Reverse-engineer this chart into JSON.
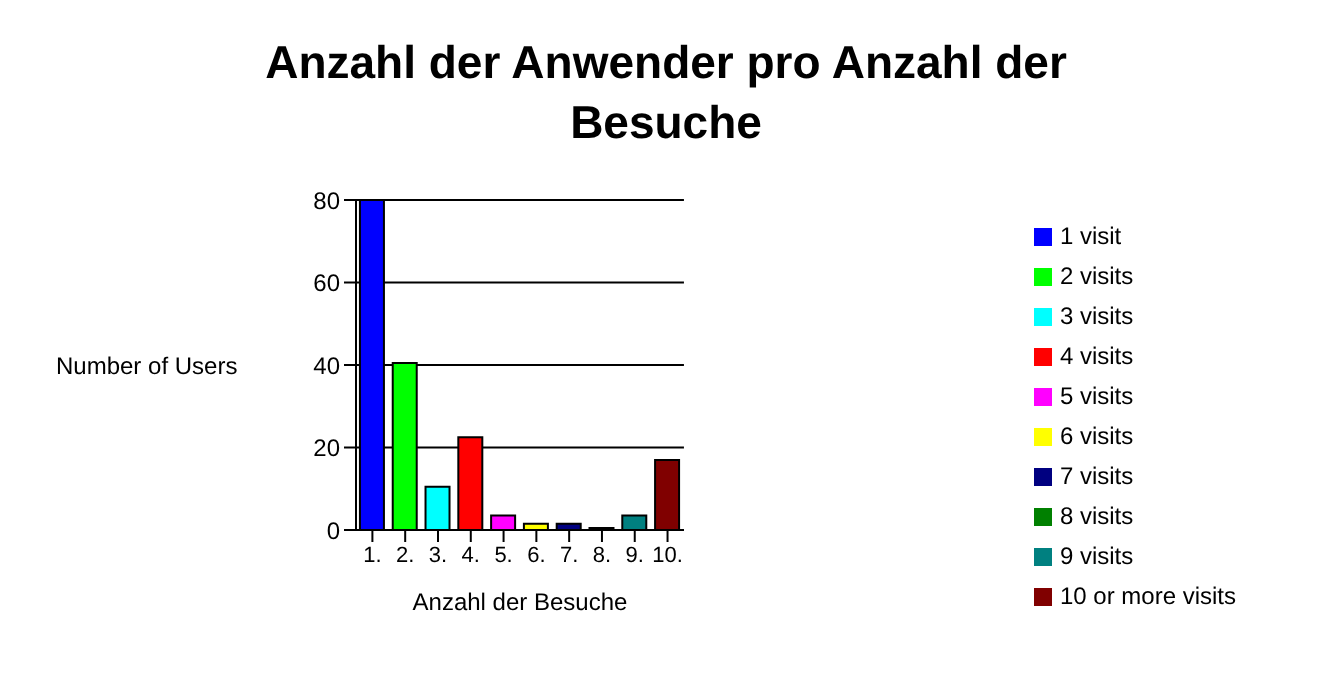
{
  "chart_data": {
    "type": "bar",
    "title": "Anzahl der Anwender pro Anzahl der Besuche",
    "xlabel": "Anzahl der Besuche",
    "ylabel": "Number of Users",
    "categories": [
      "1.",
      "2.",
      "3.",
      "4.",
      "5.",
      "6.",
      "7.",
      "8.",
      "9.",
      "10."
    ],
    "series": [
      {
        "name": "1 visit",
        "color": "#0000ff",
        "values": [
          80,
          null,
          null,
          null,
          null,
          null,
          null,
          null,
          null,
          null
        ]
      },
      {
        "name": "2 visits",
        "color": "#00ff00",
        "values": [
          null,
          40.5,
          null,
          null,
          null,
          null,
          null,
          null,
          null,
          null
        ]
      },
      {
        "name": "3 visits",
        "color": "#00ffff",
        "values": [
          null,
          null,
          10.5,
          null,
          null,
          null,
          null,
          null,
          null,
          null
        ]
      },
      {
        "name": "4 visits",
        "color": "#ff0000",
        "values": [
          null,
          null,
          null,
          22.5,
          null,
          null,
          null,
          null,
          null,
          null
        ]
      },
      {
        "name": "5 visits",
        "color": "#ff00ff",
        "values": [
          null,
          null,
          null,
          null,
          3.5,
          null,
          null,
          null,
          null,
          null
        ]
      },
      {
        "name": "6 visits",
        "color": "#ffff00",
        "values": [
          null,
          null,
          null,
          null,
          null,
          1.5,
          null,
          null,
          null,
          null
        ]
      },
      {
        "name": "7 visits",
        "color": "#000080",
        "values": [
          null,
          null,
          null,
          null,
          null,
          null,
          1.5,
          null,
          null,
          null
        ]
      },
      {
        "name": "8 visits",
        "color": "#008000",
        "values": [
          null,
          null,
          null,
          null,
          null,
          null,
          null,
          0.5,
          null,
          null
        ]
      },
      {
        "name": "9 visits",
        "color": "#008080",
        "values": [
          null,
          null,
          null,
          null,
          null,
          null,
          null,
          null,
          3.5,
          null
        ]
      },
      {
        "name": "10 or more visits",
        "color": "#800000",
        "values": [
          null,
          null,
          null,
          null,
          null,
          null,
          null,
          null,
          null,
          17
        ]
      }
    ],
    "ylim": [
      0,
      80
    ],
    "yticks": [
      0,
      20,
      40,
      60,
      80
    ],
    "grid": "y",
    "legend": "right"
  }
}
